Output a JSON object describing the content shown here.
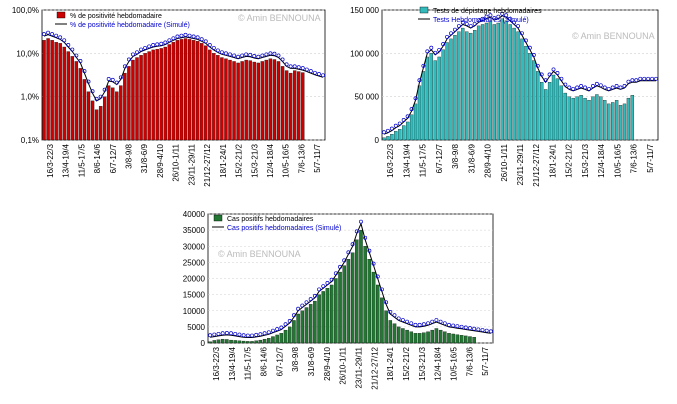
{
  "watermark": "© Amin BENNOUNA",
  "chart_data": [
    {
      "id": "positivity",
      "type": "bar",
      "yscale": "log",
      "ylim": [
        0.1,
        100
      ],
      "yticks": [
        "0,1%",
        "1,0%",
        "10,0%",
        "100,0%"
      ],
      "legend": [
        "% de positivité hebdomadaire",
        "% de positivité hebdomadaire (Simulé)"
      ],
      "legend_position": "top-left",
      "grid": true,
      "colors": {
        "bar": "#cc0000",
        "sim": "#0000cc"
      },
      "xticks": [
        "16/3-22/3",
        "13/4-19/4",
        "11/5-17/5",
        "8/6-14/6",
        "6/7-12/7",
        "3/8-9/8",
        "31/8-6/9",
        "28/9-4/10",
        "26/10-1/11",
        "23/11-29/11",
        "21/12-27/12",
        "18/1-24/1",
        "15/2-21/2",
        "15/3-21/3",
        "12/4-18/4",
        "10/5-16/5",
        "7/6-13/6",
        "5/7-11/7"
      ],
      "values": [
        20,
        22,
        20,
        18,
        17,
        14,
        11,
        8.5,
        6.5,
        4.5,
        2.5,
        1.3,
        0.8,
        0.5,
        0.6,
        1.0,
        1.8,
        1.6,
        1.3,
        1.8,
        3.5,
        5,
        7,
        8,
        9,
        10,
        11,
        12,
        12.5,
        13,
        14,
        16,
        18,
        20,
        21,
        22,
        21,
        20,
        19,
        17,
        15,
        12,
        10,
        9,
        8,
        7.5,
        7,
        6.5,
        6,
        6.5,
        7,
        6.8,
        6.3,
        6,
        6.5,
        7,
        7.5,
        7.2,
        6.5,
        5,
        4,
        3.5,
        4,
        3.8,
        3.6
      ],
      "sim": [
        25,
        27,
        25,
        23,
        21,
        18,
        14,
        11,
        8,
        6,
        3.5,
        2,
        1.2,
        0.8,
        0.9,
        1.3,
        2.3,
        2.2,
        1.9,
        2.5,
        4.5,
        6.5,
        8.5,
        9.5,
        11,
        12,
        13,
        14,
        14.5,
        15,
        16,
        18,
        20,
        22,
        23,
        24,
        23,
        22,
        21,
        19,
        17,
        14,
        12,
        10.5,
        9.5,
        9,
        8.5,
        8,
        7.5,
        8,
        8.5,
        8.3,
        7.8,
        7.5,
        8,
        8.5,
        9,
        8.8,
        8,
        6.5,
        5,
        4.5,
        4.5,
        4.3,
        4.1,
        3.8,
        3.5,
        3.2,
        3.0,
        2.8
      ]
    },
    {
      "id": "tests",
      "type": "bar",
      "ylim": [
        0,
        180000
      ],
      "yticks": [
        "0",
        "50 000",
        "100 000",
        "150 000"
      ],
      "legend": [
        "Tests de dépistage hebdomadaires",
        "Tests Hebdomadaires (Simulé)"
      ],
      "legend_position": "top",
      "grid": true,
      "colors": {
        "bar": "#33bbbb",
        "sim": "#0000cc"
      },
      "xticks": [
        "16/3-22/3",
        "13/4-19/4",
        "11/5-17/5",
        "6/7-12/7",
        "3/8-9/8",
        "31/8-6/9",
        "28/9-4/10",
        "26/10-1/11",
        "23/11-29/11",
        "21/12-27/12",
        "18/1-24/1",
        "15/2-21/2",
        "15/3-21/3",
        "12/4-18/4",
        "10/5-16/5",
        "7/6-13/6",
        "5/7-11/7"
      ],
      "values": [
        3000,
        5000,
        8000,
        12000,
        15000,
        20000,
        25000,
        35000,
        50000,
        75000,
        95000,
        115000,
        120000,
        110000,
        115000,
        125000,
        135000,
        140000,
        145000,
        150000,
        155000,
        150000,
        148000,
        152000,
        158000,
        160000,
        162000,
        165000,
        160000,
        162000,
        168000,
        165000,
        160000,
        155000,
        150000,
        140000,
        130000,
        120000,
        110000,
        95000,
        80000,
        70000,
        80000,
        90000,
        85000,
        75000,
        65000,
        60000,
        58000,
        60000,
        62000,
        58000,
        55000,
        60000,
        63000,
        60000,
        55000,
        50000,
        52000,
        55000,
        48000,
        50000,
        58000,
        62000
      ],
      "sim": [
        8000,
        10000,
        13000,
        17000,
        20000,
        25000,
        30000,
        40000,
        55000,
        80000,
        100000,
        120000,
        125000,
        118000,
        122000,
        130000,
        140000,
        145000,
        150000,
        155000,
        160000,
        158000,
        155000,
        158000,
        163000,
        165000,
        168000,
        170000,
        166000,
        168000,
        172000,
        170000,
        165000,
        160000,
        155000,
        145000,
        135000,
        125000,
        115000,
        100000,
        88000,
        80000,
        88000,
        95000,
        90000,
        82000,
        74000,
        70000,
        68000,
        70000,
        72000,
        70000,
        68000,
        72000,
        75000,
        73000,
        70000,
        68000,
        70000,
        72000,
        70000,
        72000,
        78000,
        80000,
        80000,
        82000,
        82000,
        82000,
        82000,
        82000
      ]
    },
    {
      "id": "cases",
      "type": "bar",
      "ylim": [
        0,
        40000
      ],
      "yticks": [
        "0",
        "5000",
        "10000",
        "15000",
        "20000",
        "25000",
        "30000",
        "35000",
        "40000"
      ],
      "legend": [
        "Cas positifs hebdomadaires",
        "Cas positifs hebdomadaires (Simulé)"
      ],
      "legend_position": "top-left",
      "grid": true,
      "colors": {
        "bar": "#227733",
        "sim": "#0000cc"
      },
      "xticks": [
        "16/3-22/3",
        "13/4-19/4",
        "11/5-17/5",
        "8/6-14/6",
        "6/7-12/7",
        "3/8-9/8",
        "31/8-6/9",
        "28/9-4/10",
        "26/10-1/11",
        "23/11-29/11",
        "21/12-27/12",
        "18/1-24/1",
        "15/2-21/2",
        "15/3-21/3",
        "12/4-18/4",
        "10/5-16/5",
        "7/6-13/6",
        "5/7-11/7"
      ],
      "values": [
        400,
        800,
        1000,
        1200,
        1100,
        900,
        800,
        700,
        600,
        500,
        500,
        700,
        900,
        1200,
        1500,
        2000,
        2500,
        3000,
        4000,
        5000,
        7000,
        9000,
        10000,
        11000,
        12000,
        13000,
        15000,
        16000,
        17000,
        18000,
        20000,
        22000,
        24000,
        26000,
        28000,
        32000,
        35000,
        30000,
        26000,
        22000,
        18000,
        14000,
        10000,
        7000,
        6000,
        5000,
        4500,
        4000,
        3500,
        3000,
        3000,
        3200,
        3500,
        4000,
        4500,
        4000,
        3500,
        3000,
        2800,
        2600,
        2400,
        2200,
        2000,
        1800
      ],
      "sim": [
        1800,
        2000,
        2200,
        2400,
        2500,
        2400,
        2200,
        2000,
        1800,
        1700,
        1700,
        1900,
        2100,
        2400,
        2700,
        3200,
        3700,
        4200,
        5200,
        6200,
        8000,
        10000,
        11000,
        12000,
        13000,
        14000,
        16000,
        17000,
        18000,
        19000,
        21000,
        23000,
        25000,
        27500,
        30000,
        34000,
        37000,
        32000,
        28000,
        24000,
        20000,
        16000,
        12000,
        9000,
        8000,
        7000,
        6500,
        6000,
        5500,
        5000,
        5000,
        5200,
        5500,
        6000,
        6500,
        6000,
        5500,
        5000,
        4800,
        4600,
        4400,
        4200,
        4000,
        3800,
        3600,
        3400,
        3200,
        3000
      ]
    }
  ]
}
